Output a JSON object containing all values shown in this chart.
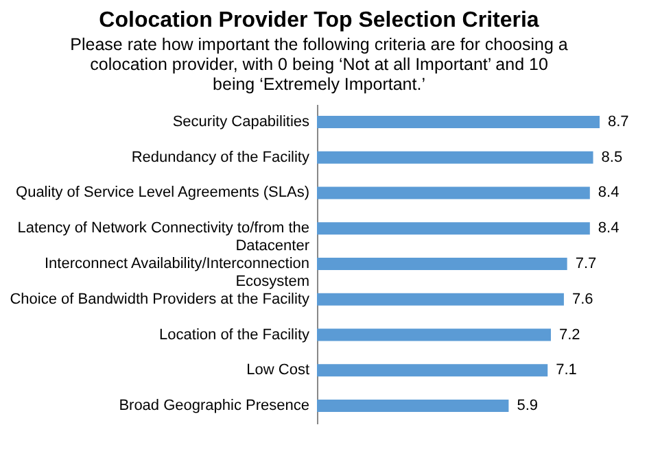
{
  "chart_data": {
    "type": "bar",
    "orientation": "horizontal",
    "title": "Colocation Provider Top Selection Criteria",
    "subtitle": "Please rate how important the following criteria are for choosing a colocation provider, with 0 being ‘Not at all Important’ and 10 being ‘Extremely Important.’",
    "categories": [
      "Security Capabilities",
      "Redundancy of the Facility",
      "Quality of Service Level Agreements (SLAs)",
      "Latency of Network Connectivity to/from the Datacenter",
      "Interconnect Availability/Interconnection Ecosystem",
      "Choice of Bandwidth Providers at the Facility",
      "Location of the Facility",
      "Low Cost",
      "Broad Geographic Presence"
    ],
    "values": [
      8.7,
      8.5,
      8.4,
      8.4,
      7.7,
      7.6,
      7.2,
      7.1,
      5.9
    ],
    "color": "#5b9bd5",
    "data_labels": true,
    "grid": false
  }
}
